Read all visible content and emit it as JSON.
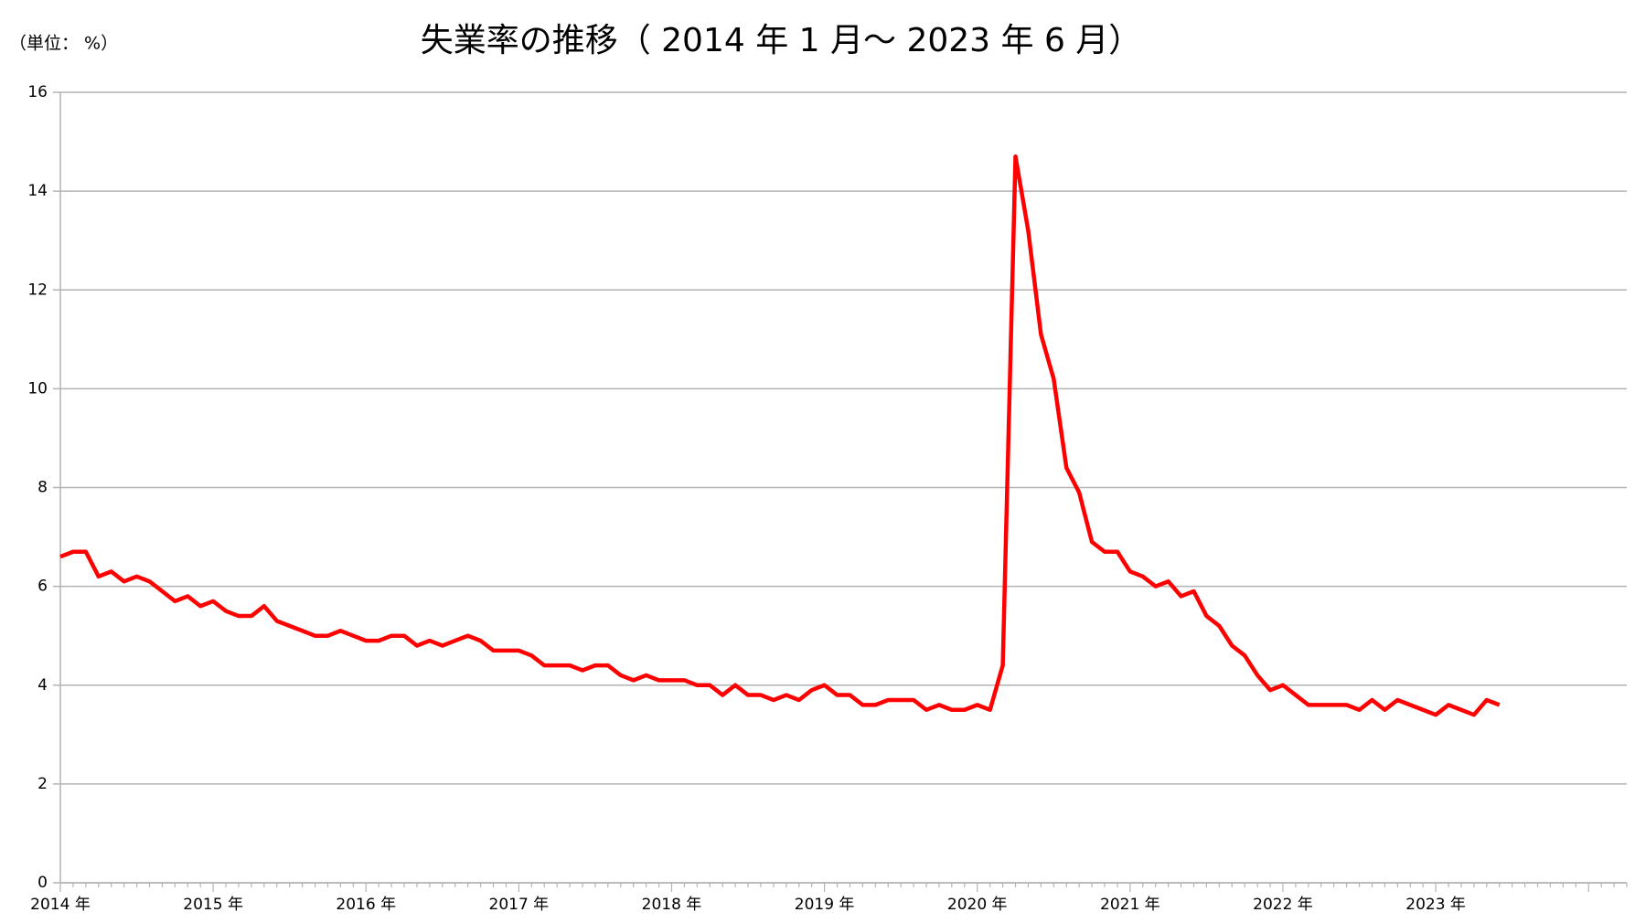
{
  "chart_data": {
    "type": "line",
    "title": "失業率の推移（ 2014 年 1 月～ 2023 年 6 月）",
    "unit_label": "（単位： %）",
    "categories": [
      "2014 年",
      null,
      null,
      null,
      null,
      null,
      null,
      null,
      null,
      null,
      null,
      null,
      "2015 年",
      null,
      null,
      null,
      null,
      null,
      null,
      null,
      null,
      null,
      null,
      null,
      "2016 年",
      null,
      null,
      null,
      null,
      null,
      null,
      null,
      null,
      null,
      null,
      null,
      "2017 年",
      null,
      null,
      null,
      null,
      null,
      null,
      null,
      null,
      null,
      null,
      null,
      "2018 年",
      null,
      null,
      null,
      null,
      null,
      null,
      null,
      null,
      null,
      null,
      null,
      "2019 年",
      null,
      null,
      null,
      null,
      null,
      null,
      null,
      null,
      null,
      null,
      null,
      "2020 年",
      null,
      null,
      null,
      null,
      null,
      null,
      null,
      null,
      null,
      null,
      null,
      "2021 年",
      null,
      null,
      null,
      null,
      null,
      null,
      null,
      null,
      null,
      null,
      null,
      "2022 年",
      null,
      null,
      null,
      null,
      null,
      null,
      null,
      null,
      null,
      null,
      null,
      "2023 年",
      null,
      null,
      null,
      null,
      null
    ],
    "values": [
      6.6,
      6.7,
      6.7,
      6.2,
      6.3,
      6.1,
      6.2,
      6.1,
      5.9,
      5.7,
      5.8,
      5.6,
      5.7,
      5.5,
      5.4,
      5.4,
      5.6,
      5.3,
      5.2,
      5.1,
      5.0,
      5.0,
      5.1,
      5.0,
      4.9,
      4.9,
      5.0,
      5.0,
      4.8,
      4.9,
      4.8,
      4.9,
      5.0,
      4.9,
      4.7,
      4.7,
      4.7,
      4.6,
      4.4,
      4.4,
      4.4,
      4.3,
      4.4,
      4.4,
      4.2,
      4.1,
      4.2,
      4.1,
      4.1,
      4.1,
      4.0,
      4.0,
      3.8,
      4.0,
      3.8,
      3.8,
      3.7,
      3.8,
      3.7,
      3.9,
      4.0,
      3.8,
      3.8,
      3.6,
      3.6,
      3.7,
      3.7,
      3.7,
      3.5,
      3.6,
      3.5,
      3.5,
      3.6,
      3.5,
      4.4,
      14.7,
      13.2,
      11.1,
      10.2,
      8.4,
      7.9,
      6.9,
      6.7,
      6.7,
      6.3,
      6.2,
      6.0,
      6.1,
      5.8,
      5.9,
      5.4,
      5.2,
      4.8,
      4.6,
      4.2,
      3.9,
      4.0,
      3.8,
      3.6,
      3.6,
      3.6,
      3.6,
      3.5,
      3.7,
      3.5,
      3.7,
      3.6,
      3.5,
      3.4,
      3.6,
      3.5,
      3.4,
      3.7,
      3.6
    ],
    "color": "#ff0000",
    "ylim": [
      0,
      16
    ],
    "yticks": [
      0,
      2,
      4,
      6,
      8,
      10,
      12,
      14,
      16
    ],
    "grid": true
  }
}
